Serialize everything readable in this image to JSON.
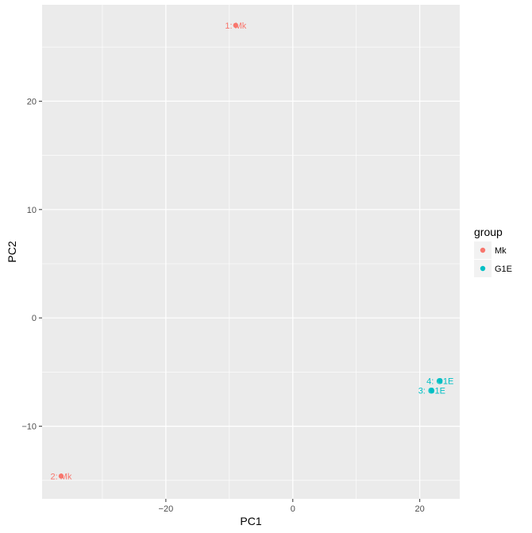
{
  "chart_data": {
    "type": "scatter",
    "xlabel": "PC1",
    "ylabel": "PC2",
    "xlim": [
      -39.5,
      26.3
    ],
    "ylim": [
      -16.7,
      28.9
    ],
    "xticks": [
      -20,
      0,
      20
    ],
    "xtick_labels": [
      "−20",
      "0",
      "20"
    ],
    "yticks": [
      -10,
      0,
      10,
      20
    ],
    "ytick_labels": [
      "−10",
      "0",
      "10",
      "20"
    ],
    "grid": true,
    "legend": {
      "title": "group",
      "position": "right",
      "entries": [
        {
          "label": "Mk",
          "color": "#F8766D"
        },
        {
          "label": "G1E",
          "color": "#00BFC4"
        }
      ]
    },
    "points": [
      {
        "x": -9.0,
        "y": 27.0,
        "group": "Mk",
        "label": "1: Mk"
      },
      {
        "x": -36.5,
        "y": -14.6,
        "group": "Mk",
        "label": "2: Mk"
      },
      {
        "x": 21.9,
        "y": -6.7,
        "group": "G1E",
        "label": "3: G1E"
      },
      {
        "x": 23.2,
        "y": -5.8,
        "group": "G1E",
        "label": "4: G1E"
      }
    ]
  },
  "colors": {
    "panel_background": "#EBEBEB",
    "grid_major": "#FFFFFF",
    "Mk": "#F8766D",
    "G1E": "#00BFC4"
  }
}
